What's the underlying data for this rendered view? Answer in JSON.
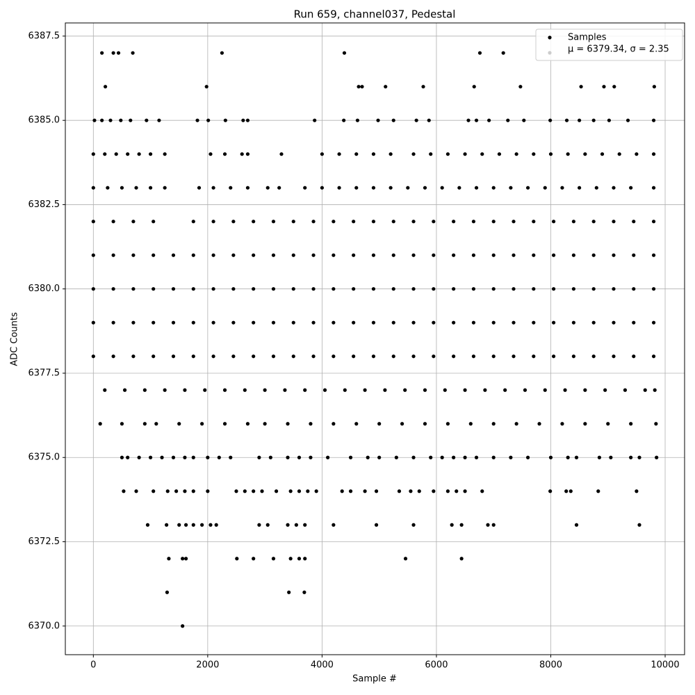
{
  "chart_data": {
    "type": "scatter",
    "title": "Run 659, channel037, Pedestal",
    "x_label": "Sample #",
    "y_label": "ADC Counts",
    "annotation": "μ = 6379.34, σ = 2.35",
    "legend": "upper right",
    "grid": true,
    "xlim": [
      -490,
      10340
    ],
    "xticks": [
      0,
      2000,
      4000,
      6000,
      8000,
      10000
    ],
    "ylim": [
      6369.15,
      6387.89
    ],
    "yticks": [
      {
        "value": 6370,
        "label": "6370.0"
      },
      6372.5,
      {
        "value": 6375,
        "label": "6375.0"
      },
      6377.5,
      {
        "value": 6380,
        "label": "6380.0"
      },
      6382.5,
      {
        "value": 6385,
        "label": "6385.0"
      },
      6387.5
    ],
    "series": [
      {
        "name": "Samples",
        "color": "#000000",
        "x": [
          150,
          350,
          440,
          690,
          2250,
          4390,
          6760,
          7170,
          210,
          1980,
          4640,
          4700,
          5110,
          5770,
          6660,
          7470,
          8530,
          8930,
          9110,
          9810,
          20,
          150,
          300,
          480,
          650,
          930,
          1150,
          1820,
          2010,
          2310,
          2620,
          2700,
          3870,
          4380,
          4620,
          4980,
          5250,
          5650,
          5870,
          6560,
          6700,
          6920,
          7250,
          7530,
          7990,
          8280,
          8500,
          8750,
          9020,
          9350,
          9800,
          0,
          200,
          400,
          600,
          800,
          1000,
          1250,
          2050,
          2300,
          2600,
          2700,
          3290,
          4000,
          4300,
          4600,
          4900,
          5200,
          5600,
          5900,
          6200,
          6500,
          6800,
          7100,
          7400,
          7700,
          8000,
          8300,
          8600,
          8900,
          9200,
          9500,
          9800,
          0,
          250,
          500,
          750,
          1000,
          1250,
          1850,
          2100,
          2400,
          2700,
          3050,
          3250,
          3700,
          4000,
          4300,
          4600,
          4900,
          5200,
          5500,
          5800,
          6100,
          6400,
          6700,
          7000,
          7300,
          7600,
          7900,
          8200,
          8500,
          8800,
          9100,
          9400,
          9800,
          0,
          350,
          700,
          1050,
          1750,
          2100,
          2450,
          2800,
          3150,
          3500,
          3850,
          4200,
          4550,
          4900,
          5250,
          5600,
          5950,
          6300,
          6650,
          7000,
          7350,
          7700,
          8050,
          8400,
          8750,
          9100,
          9450,
          9800,
          0,
          350,
          700,
          1050,
          1400,
          1750,
          2100,
          2450,
          2800,
          3150,
          3500,
          3850,
          4200,
          4550,
          4900,
          5250,
          5600,
          5950,
          6300,
          6650,
          7000,
          7350,
          7700,
          8050,
          8400,
          8750,
          9100,
          9450,
          9800,
          0,
          350,
          700,
          1050,
          1400,
          1750,
          2100,
          2450,
          2800,
          3150,
          3500,
          3850,
          4200,
          4550,
          4900,
          5250,
          5600,
          5950,
          6300,
          6650,
          7000,
          7350,
          7700,
          8050,
          8400,
          8750,
          9100,
          9450,
          9800,
          0,
          350,
          700,
          1050,
          1400,
          1750,
          2100,
          2450,
          2800,
          3150,
          3500,
          3850,
          4200,
          4550,
          4900,
          5250,
          5600,
          5950,
          6300,
          6650,
          7000,
          7350,
          7700,
          8050,
          8400,
          8750,
          9100,
          9450,
          9800,
          0,
          350,
          700,
          1050,
          1400,
          1750,
          2100,
          2450,
          2800,
          3150,
          3500,
          3850,
          4200,
          4550,
          4900,
          5250,
          5600,
          5950,
          6300,
          6650,
          7000,
          7350,
          7700,
          8050,
          8400,
          8750,
          9100,
          9450,
          9800,
          200,
          550,
          900,
          1250,
          1600,
          1950,
          2300,
          2650,
          3000,
          3350,
          3700,
          4050,
          4400,
          4750,
          5100,
          5450,
          5800,
          6150,
          6500,
          6850,
          7200,
          7550,
          7900,
          8250,
          8600,
          8950,
          9300,
          9650,
          9820,
          120,
          500,
          900,
          1100,
          1500,
          1900,
          2300,
          2700,
          3000,
          3400,
          3800,
          4200,
          4600,
          5000,
          5400,
          5800,
          6200,
          6600,
          7000,
          7400,
          7800,
          8200,
          8600,
          9000,
          9400,
          9840,
          500,
          600,
          800,
          1000,
          1200,
          1400,
          1600,
          1750,
          2000,
          2200,
          2400,
          2900,
          3100,
          3400,
          3600,
          3800,
          4100,
          4500,
          4800,
          5000,
          5300,
          5600,
          5900,
          6100,
          6300,
          6500,
          6700,
          7000,
          7300,
          7600,
          8000,
          8300,
          8450,
          8850,
          9050,
          9400,
          9550,
          9850,
          530,
          750,
          1050,
          1300,
          1450,
          1600,
          1750,
          2000,
          2500,
          2650,
          2800,
          2950,
          3200,
          3450,
          3600,
          3750,
          3900,
          4350,
          4500,
          4750,
          4950,
          5350,
          5550,
          5700,
          5950,
          6200,
          6350,
          6500,
          6800,
          7990,
          8270,
          8350,
          8830,
          9500,
          950,
          1280,
          1500,
          1620,
          1750,
          1900,
          2050,
          2150,
          2900,
          3050,
          3400,
          3550,
          3700,
          4200,
          4950,
          5600,
          6270,
          6440,
          6900,
          7000,
          8450,
          9550,
          1320,
          1560,
          1620,
          2510,
          2800,
          3150,
          3450,
          3600,
          3700,
          5460,
          6440,
          1290,
          3420,
          3690,
          1560
        ],
        "values": [
          6387,
          6387,
          6387,
          6387,
          6387,
          6387,
          6387,
          6387,
          6386,
          6386,
          6386,
          6386,
          6386,
          6386,
          6386,
          6386,
          6386,
          6386,
          6386,
          6386,
          6385,
          6385,
          6385,
          6385,
          6385,
          6385,
          6385,
          6385,
          6385,
          6385,
          6385,
          6385,
          6385,
          6385,
          6385,
          6385,
          6385,
          6385,
          6385,
          6385,
          6385,
          6385,
          6385,
          6385,
          6385,
          6385,
          6385,
          6385,
          6385,
          6385,
          6385,
          6384,
          6384,
          6384,
          6384,
          6384,
          6384,
          6384,
          6384,
          6384,
          6384,
          6384,
          6384,
          6384,
          6384,
          6384,
          6384,
          6384,
          6384,
          6384,
          6384,
          6384,
          6384,
          6384,
          6384,
          6384,
          6384,
          6384,
          6384,
          6384,
          6384,
          6384,
          6384,
          6383,
          6383,
          6383,
          6383,
          6383,
          6383,
          6383,
          6383,
          6383,
          6383,
          6383,
          6383,
          6383,
          6383,
          6383,
          6383,
          6383,
          6383,
          6383,
          6383,
          6383,
          6383,
          6383,
          6383,
          6383,
          6383,
          6383,
          6383,
          6383,
          6383,
          6383,
          6383,
          6383,
          6382,
          6382,
          6382,
          6382,
          6382,
          6382,
          6382,
          6382,
          6382,
          6382,
          6382,
          6382,
          6382,
          6382,
          6382,
          6382,
          6382,
          6382,
          6382,
          6382,
          6382,
          6382,
          6382,
          6382,
          6382,
          6382,
          6382,
          6382,
          6381,
          6381,
          6381,
          6381,
          6381,
          6381,
          6381,
          6381,
          6381,
          6381,
          6381,
          6381,
          6381,
          6381,
          6381,
          6381,
          6381,
          6381,
          6381,
          6381,
          6381,
          6381,
          6381,
          6381,
          6381,
          6381,
          6381,
          6381,
          6381,
          6380,
          6380,
          6380,
          6380,
          6380,
          6380,
          6380,
          6380,
          6380,
          6380,
          6380,
          6380,
          6380,
          6380,
          6380,
          6380,
          6380,
          6380,
          6380,
          6380,
          6380,
          6380,
          6380,
          6380,
          6380,
          6380,
          6380,
          6380,
          6380,
          6379,
          6379,
          6379,
          6379,
          6379,
          6379,
          6379,
          6379,
          6379,
          6379,
          6379,
          6379,
          6379,
          6379,
          6379,
          6379,
          6379,
          6379,
          6379,
          6379,
          6379,
          6379,
          6379,
          6379,
          6379,
          6379,
          6379,
          6379,
          6379,
          6378,
          6378,
          6378,
          6378,
          6378,
          6378,
          6378,
          6378,
          6378,
          6378,
          6378,
          6378,
          6378,
          6378,
          6378,
          6378,
          6378,
          6378,
          6378,
          6378,
          6378,
          6378,
          6378,
          6378,
          6378,
          6378,
          6378,
          6378,
          6378,
          6377,
          6377,
          6377,
          6377,
          6377,
          6377,
          6377,
          6377,
          6377,
          6377,
          6377,
          6377,
          6377,
          6377,
          6377,
          6377,
          6377,
          6377,
          6377,
          6377,
          6377,
          6377,
          6377,
          6377,
          6377,
          6377,
          6377,
          6377,
          6377,
          6376,
          6376,
          6376,
          6376,
          6376,
          6376,
          6376,
          6376,
          6376,
          6376,
          6376,
          6376,
          6376,
          6376,
          6376,
          6376,
          6376,
          6376,
          6376,
          6376,
          6376,
          6376,
          6376,
          6376,
          6376,
          6376,
          6375,
          6375,
          6375,
          6375,
          6375,
          6375,
          6375,
          6375,
          6375,
          6375,
          6375,
          6375,
          6375,
          6375,
          6375,
          6375,
          6375,
          6375,
          6375,
          6375,
          6375,
          6375,
          6375,
          6375,
          6375,
          6375,
          6375,
          6375,
          6375,
          6375,
          6375,
          6375,
          6375,
          6375,
          6375,
          6375,
          6375,
          6375,
          6374,
          6374,
          6374,
          6374,
          6374,
          6374,
          6374,
          6374,
          6374,
          6374,
          6374,
          6374,
          6374,
          6374,
          6374,
          6374,
          6374,
          6374,
          6374,
          6374,
          6374,
          6374,
          6374,
          6374,
          6374,
          6374,
          6374,
          6374,
          6374,
          6374,
          6374,
          6374,
          6374,
          6374,
          6373,
          6373,
          6373,
          6373,
          6373,
          6373,
          6373,
          6373,
          6373,
          6373,
          6373,
          6373,
          6373,
          6373,
          6373,
          6373,
          6373,
          6373,
          6373,
          6373,
          6373,
          6373,
          6372,
          6372,
          6372,
          6372,
          6372,
          6372,
          6372,
          6372,
          6372,
          6372,
          6372,
          6371,
          6371,
          6371,
          6370
        ]
      }
    ]
  }
}
